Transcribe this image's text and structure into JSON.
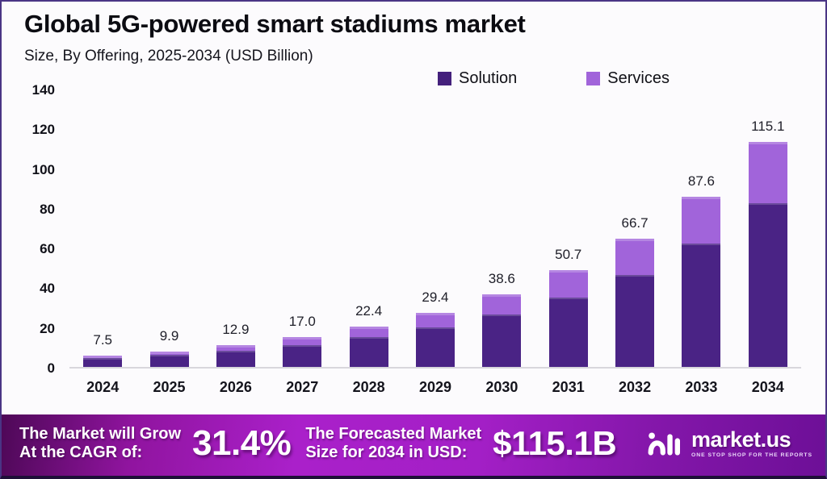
{
  "header": {
    "title": "Global 5G-powered smart stadiums market",
    "subtitle": "Size, By Offering, 2025-2034 (USD Billion)"
  },
  "legend": {
    "items": [
      {
        "label": "Solution",
        "color": "#44207c"
      },
      {
        "label": "Services",
        "color": "#a164da"
      }
    ]
  },
  "chart_data": {
    "type": "bar",
    "stacked": true,
    "title": "Global 5G-powered smart stadiums market",
    "subtitle": "Size, By Offering, 2025-2034 (USD Billion)",
    "categories": [
      "2024",
      "2025",
      "2026",
      "2027",
      "2028",
      "2029",
      "2030",
      "2031",
      "2032",
      "2033",
      "2034"
    ],
    "series": [
      {
        "name": "Solution",
        "color": "#4a2385",
        "values": [
          5.3,
          6.9,
          9.0,
          11.9,
          15.7,
          20.5,
          27.0,
          35.6,
          47.2,
          63.0,
          83.0
        ]
      },
      {
        "name": "Services",
        "color": "#a164da",
        "values": [
          2.2,
          3.0,
          3.9,
          5.1,
          6.7,
          8.9,
          11.6,
          15.1,
          19.5,
          24.6,
          32.1
        ]
      }
    ],
    "totals": [
      7.5,
      9.9,
      12.9,
      17.0,
      22.4,
      29.4,
      38.6,
      50.7,
      66.7,
      87.6,
      115.1
    ],
    "total_labels": [
      "7.5",
      "9.9",
      "12.9",
      "17.0",
      "22.4",
      "29.4",
      "38.6",
      "50.7",
      "66.7",
      "87.6",
      "115.1"
    ],
    "xlabel": "",
    "ylabel": "",
    "ylim": [
      0,
      140
    ],
    "yticks": [
      140,
      120,
      100,
      80,
      60,
      40,
      20,
      0
    ],
    "grid": false,
    "legend_position": "top-center"
  },
  "banner": {
    "cagr_label_line1": "The Market will Grow",
    "cagr_label_line2": "At the CAGR of:",
    "cagr_value": "31.4%",
    "forecast_label_line1": "The Forecasted Market",
    "forecast_label_line2": "Size for 2034 in USD:",
    "forecast_value": "$115.1B",
    "brand_name": "market.us",
    "brand_tagline": "ONE STOP SHOP FOR THE REPORTS"
  },
  "colors": {
    "solution": "#4a2385",
    "services": "#a164da",
    "background": "#fcfbfd",
    "banner_gradient_start": "#4e0857",
    "banner_gradient_mid": "#aa20ca",
    "banner_gradient_end": "#6d0f97",
    "axis_line": "#d8d6dc"
  }
}
